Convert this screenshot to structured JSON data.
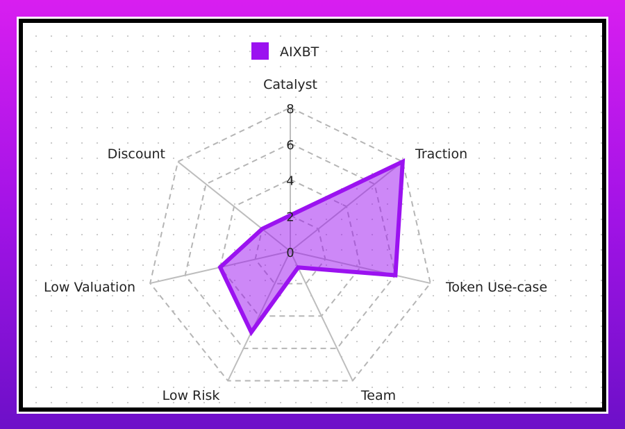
{
  "chart_data": {
    "type": "radar",
    "categories": [
      "Catalyst",
      "Traction",
      "Token Use-case",
      "Team",
      "Low Risk",
      "Low Valuation",
      "Discount"
    ],
    "series": [
      {
        "name": "AIXBT",
        "values": [
          2,
          8,
          6,
          1,
          5,
          4,
          2
        ],
        "color": "#9b12f0"
      }
    ],
    "r_ticks": [
      "0",
      "2",
      "4",
      "6",
      "8"
    ],
    "rlim": [
      0,
      8
    ],
    "legend": "top",
    "grid": "dashed polygons"
  }
}
